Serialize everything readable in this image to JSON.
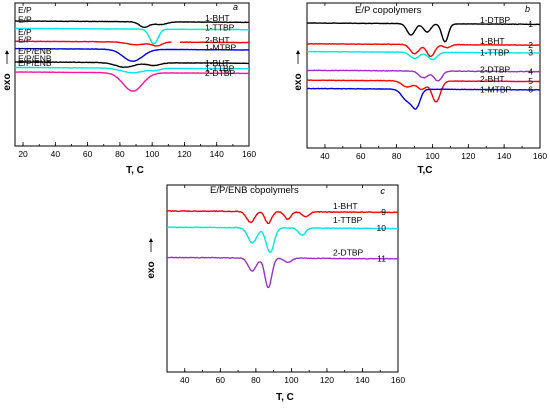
{
  "chart_data": [
    {
      "type": "line",
      "panel_letter": "a",
      "title": "",
      "xlabel": "T, C",
      "ylabel": "exo",
      "xlim": [
        15,
        160
      ],
      "xticks": [
        20,
        40,
        60,
        80,
        100,
        120,
        140,
        160
      ],
      "series": [
        {
          "id": "a1",
          "left_label": "E/P",
          "right_label": "1-BHT",
          "color": "#000000",
          "base": 0.0,
          "trans": [
            [
              95,
              1.2,
              3.0
            ],
            [
              105,
              0.6,
              4.0
            ]
          ],
          "noise": 0.04,
          "offset": 0.0
        },
        {
          "id": "a2",
          "left_label": "E/P",
          "right_label": "1-TTBP",
          "color": "#00e5e5",
          "base": 0.0,
          "trans": [
            [
              101,
              3.2,
              2.6
            ]
          ],
          "noise": 0.03,
          "offset": -1.6
        },
        {
          "id": "a3",
          "left_label": "E/P",
          "right_label": "2-BHT",
          "color": "#ff0000",
          "base": 0.0,
          "trans": [
            [
              90,
              0.6,
              6
            ],
            [
              103,
              0.8,
              3
            ]
          ],
          "noise": 0.04,
          "offset": -4.4
        },
        {
          "id": "a4",
          "left_label": "E/P",
          "right_label": "1-MTBP",
          "color": "#0000e0",
          "base": 0.0,
          "trans": [
            [
              88,
              2.6,
              6
            ]
          ],
          "noise": 0.03,
          "offset": -6.0
        },
        {
          "id": "a5",
          "left_label": "E/P/ENB",
          "right_label": "1-BHT",
          "color": "#000000",
          "base": 0.0,
          "trans": [
            [
              83,
              1.0,
              6
            ],
            [
              101,
              0.6,
              4
            ]
          ],
          "noise": 0.04,
          "offset": -8.9
        },
        {
          "id": "a6",
          "left_label": "E/P/ENB",
          "right_label": "1-TTBP",
          "color": "#00e5e5",
          "base": 0.0,
          "trans": [
            [
              88,
              1.0,
              7
            ],
            [
              102,
              0.4,
              3
            ]
          ],
          "noise": 0.03,
          "offset": -10.1
        },
        {
          "id": "a7",
          "left_label": "E/P/ENB",
          "right_label": "2-DTBP",
          "color": "#ff1493",
          "base": 0.0,
          "trans": [
            [
              88,
              4.0,
              6
            ]
          ],
          "noise": 0.03,
          "offset": -11.1
        }
      ]
    },
    {
      "type": "line",
      "panel_letter": "b",
      "title": "E/P copolymers",
      "xlabel": "T,C",
      "ylabel": "exo",
      "xlim": [
        30,
        160
      ],
      "xticks": [
        40,
        60,
        80,
        100,
        120,
        140,
        160
      ],
      "series": [
        {
          "id": "b1",
          "left_label": "",
          "right_label": "1-DTBP",
          "number": "1",
          "color": "#000000",
          "trans": [
            [
              88,
              2.2,
              2.2
            ],
            [
              97,
              1.6,
              2.0
            ],
            [
              107,
              3.5,
              1.8
            ]
          ],
          "noise": 0.03,
          "offset": 0.0
        },
        {
          "id": "b2",
          "left_label": "",
          "right_label": "1-BHT",
          "number": "2",
          "color": "#ff0000",
          "trans": [
            [
              90,
              1.8,
              2.4
            ],
            [
              99,
              2.3,
              2.2
            ],
            [
              108,
              0.6,
              2
            ]
          ],
          "noise": 0.04,
          "offset": -4.0
        },
        {
          "id": "b3",
          "left_label": "",
          "right_label": "1-TTBP",
          "number": "3",
          "color": "#00e5e5",
          "trans": [
            [
              90,
              1.2,
              2.5
            ],
            [
              100,
              1.4,
              2.5
            ]
          ],
          "noise": 0.03,
          "offset": -5.5
        },
        {
          "id": "b4",
          "left_label": "",
          "right_label": "2-DTBP",
          "number": "4",
          "color": "#9932cc",
          "trans": [
            [
              95,
              1.3,
              2.5
            ],
            [
              103,
              1.9,
              2.2
            ]
          ],
          "noise": 0.05,
          "offset": -9.1
        },
        {
          "id": "b5",
          "left_label": "",
          "right_label": "2-BHT",
          "number": "5",
          "color": "#ff0000",
          "trans": [
            [
              86,
              1.2,
              3
            ],
            [
              94,
              1.6,
              2.4
            ],
            [
              102,
              4.0,
              2.4
            ]
          ],
          "noise": 0.04,
          "offset": -11.0
        },
        {
          "id": "b6",
          "left_label": "",
          "right_label": "1-MTBP",
          "number": "6",
          "color": "#0000e0",
          "trans": [
            [
              86,
              2.2,
              3
            ],
            [
              91,
              3.2,
              2.2
            ]
          ],
          "noise": 0.04,
          "offset": -12.6
        }
      ]
    },
    {
      "type": "line",
      "panel_letter": "c",
      "title": "E/P/ENB copolymers",
      "xlabel": "T, C",
      "ylabel": "exo",
      "xlim": [
        30,
        160
      ],
      "xticks": [
        40,
        60,
        80,
        100,
        120,
        140,
        160
      ],
      "series": [
        {
          "id": "c1",
          "left_label": "",
          "right_label": "1-BHT",
          "number": "9",
          "color": "#ff0000",
          "trans": [
            [
              77,
              2.0,
              2.2
            ],
            [
              87,
              2.2,
              1.8
            ],
            [
              98,
              1.4,
              1.8
            ],
            [
              108,
              0.9,
              2
            ]
          ],
          "noise": 0.07,
          "offset": 0.0
        },
        {
          "id": "c2",
          "left_label": "",
          "right_label": "1-TTBP",
          "number": "10",
          "color": "#00e5e5",
          "trans": [
            [
              78,
              2.8,
              2.5
            ],
            [
              88,
              4.6,
              2.2
            ],
            [
              106,
              1.3,
              2
            ]
          ],
          "noise": 0.06,
          "offset": -3.0
        },
        {
          "id": "c3",
          "left_label": "",
          "right_label": "2-DTBP",
          "number": "11",
          "color": "#9932cc",
          "trans": [
            [
              78,
              2.4,
              2.3
            ],
            [
              87,
              5.5,
              1.9
            ],
            [
              98,
              0.8,
              2
            ]
          ],
          "noise": 0.05,
          "offset": -8.6
        }
      ]
    }
  ]
}
